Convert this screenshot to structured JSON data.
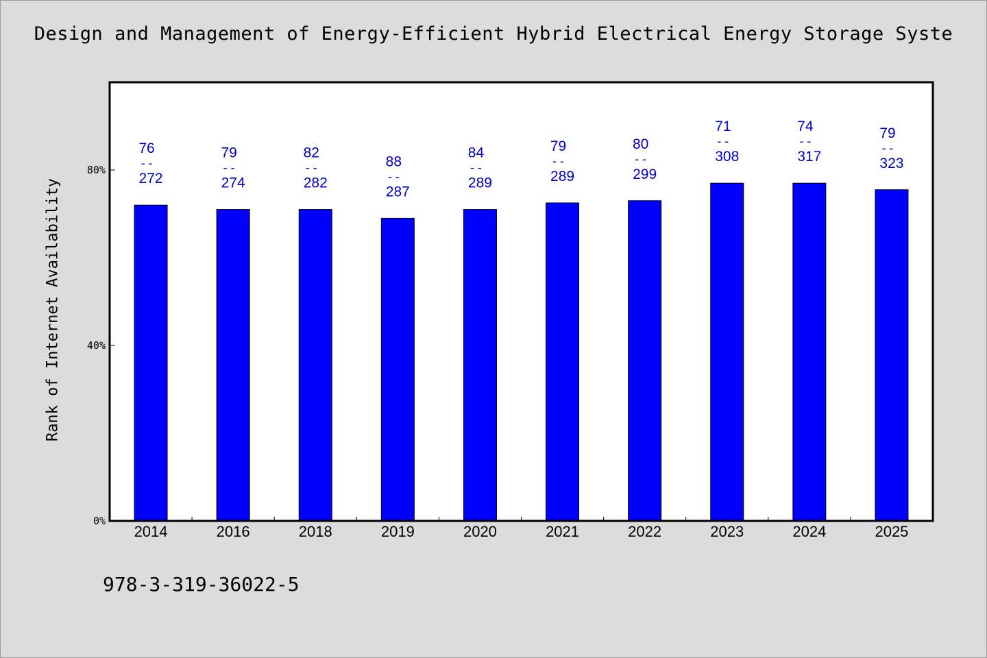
{
  "chart_data": {
    "type": "bar",
    "title": "Design and Management of Energy-Efficient Hybrid Electrical Energy Storage Syste",
    "xlabel": "",
    "ylabel": "Rank of Internet Availability",
    "categories": [
      "2014",
      "2016",
      "2018",
      "2019",
      "2020",
      "2021",
      "2022",
      "2023",
      "2024",
      "2025"
    ],
    "values": [
      72,
      71,
      71,
      69,
      71,
      72.5,
      73,
      77,
      77,
      75.5
    ],
    "value_unit": "%",
    "data_labels": [
      {
        "top": "76",
        "separator": "--",
        "bottom": "272"
      },
      {
        "top": "79",
        "separator": "--",
        "bottom": "274"
      },
      {
        "top": "82",
        "separator": "--",
        "bottom": "282"
      },
      {
        "top": "88",
        "separator": "--",
        "bottom": "287"
      },
      {
        "top": "84",
        "separator": "--",
        "bottom": "289"
      },
      {
        "top": "79",
        "separator": "--",
        "bottom": "289"
      },
      {
        "top": "80",
        "separator": "--",
        "bottom": "299"
      },
      {
        "top": "71",
        "separator": "--",
        "bottom": "308"
      },
      {
        "top": "74",
        "separator": "--",
        "bottom": "317"
      },
      {
        "top": "79",
        "separator": "--",
        "bottom": "323"
      }
    ],
    "yticks": [
      {
        "value": 0,
        "label": "0%"
      },
      {
        "value": 40,
        "label": "40%"
      },
      {
        "value": 80,
        "label": "80%"
      }
    ],
    "ylim": [
      0,
      100
    ],
    "grid": false,
    "legend": "none",
    "colors": {
      "bar": "#0000ff",
      "label": "#0000cc",
      "axis": "#000000",
      "plot_bg": "#ffffff",
      "page_bg": "#dcdcdc"
    }
  },
  "footer": {
    "isbn": "978-3-319-36022-5"
  }
}
